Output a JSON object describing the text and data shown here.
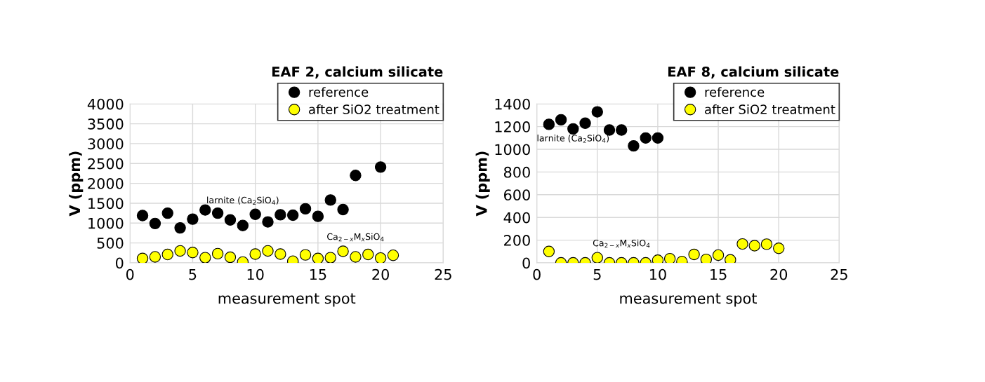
{
  "chart_data": [
    {
      "type": "scatter",
      "title": "EAF 2, calcium silicate",
      "xlabel": "measurement spot",
      "ylabel": "V (ppm)",
      "xlim": [
        0,
        25
      ],
      "xticks": [
        0,
        5,
        10,
        15,
        20,
        25
      ],
      "ylim": [
        0,
        4000
      ],
      "yticks": [
        0,
        500,
        1000,
        1500,
        2000,
        2500,
        3000,
        3500,
        4000
      ],
      "grid": true,
      "legend": "top right",
      "marker": "circle",
      "series": [
        {
          "name": "reference",
          "color": "#000000",
          "x": [
            1,
            2,
            3,
            4,
            5,
            6,
            7,
            8,
            9,
            10,
            11,
            12,
            13,
            14,
            15,
            16,
            17,
            18,
            20
          ],
          "values": [
            1190,
            990,
            1250,
            880,
            1100,
            1330,
            1250,
            1080,
            940,
            1220,
            1030,
            1210,
            1200,
            1360,
            1170,
            1580,
            1340,
            2200,
            2410
          ]
        },
        {
          "name": "after SiO2 treatment",
          "color": "#ffff00",
          "x": [
            1,
            2,
            3,
            4,
            5,
            6,
            7,
            8,
            9,
            10,
            11,
            12,
            13,
            14,
            15,
            16,
            17,
            18,
            19,
            20,
            21
          ],
          "values": [
            110,
            150,
            210,
            300,
            260,
            130,
            230,
            140,
            20,
            220,
            300,
            220,
            40,
            200,
            110,
            130,
            290,
            150,
            210,
            120,
            190
          ]
        }
      ],
      "annotations": [
        "larnite (Ca$_{2}$SiO$_{4}$)",
        "Ca$_{2−x}$M$_{x}$SiO$_{4}$"
      ]
    },
    {
      "type": "scatter",
      "title": "EAF 8, calcium silicate",
      "xlabel": "measurement spot",
      "ylabel": "V (ppm)",
      "xlim": [
        0,
        25
      ],
      "xticks": [
        0,
        5,
        10,
        15,
        20,
        25
      ],
      "ylim": [
        0,
        1400
      ],
      "yticks": [
        0,
        200,
        400,
        600,
        800,
        1000,
        1200,
        1400
      ],
      "grid": true,
      "legend": "top right",
      "marker": "circle",
      "series": [
        {
          "name": "reference",
          "color": "#000000",
          "x": [
            1,
            2,
            3,
            4,
            5,
            6,
            7,
            8,
            9,
            10
          ],
          "values": [
            1220,
            1260,
            1180,
            1230,
            1330,
            1170,
            1170,
            1030,
            1100,
            1100
          ]
        },
        {
          "name": "after SiO2 treatment",
          "color": "#ffff00",
          "x": [
            1,
            2,
            3,
            4,
            5,
            6,
            7,
            8,
            9,
            10,
            11,
            12,
            13,
            14,
            15,
            16,
            17,
            18,
            19,
            20
          ],
          "values": [
            100,
            0,
            0,
            0,
            45,
            0,
            0,
            0,
            0,
            23,
            36,
            11,
            74,
            30,
            68,
            26,
            166,
            151,
            164,
            128
          ]
        }
      ],
      "annotations": [
        "larnite (Ca$_{2}$SiO$_{4}$)",
        "Ca$_{2−x}$M$_{x}$SiO$_{4}$"
      ]
    }
  ]
}
